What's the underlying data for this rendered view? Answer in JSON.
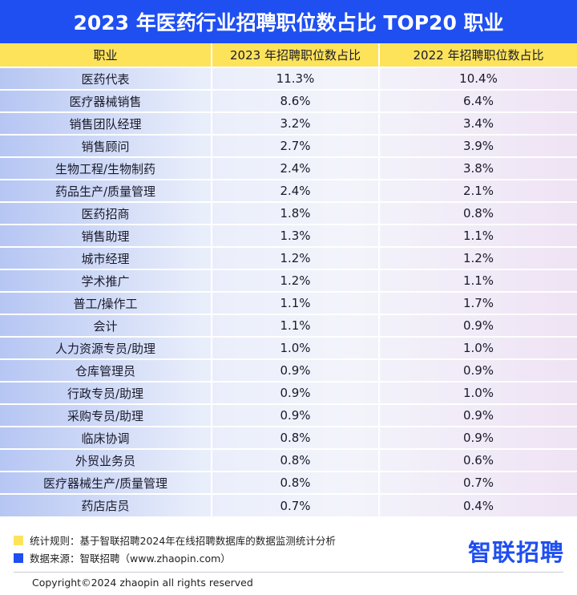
{
  "chart_data": {
    "type": "table",
    "title": "2023 年医药行业招聘职位数占比 TOP20 职业",
    "columns": [
      "职业",
      "2023 年招聘职位数占比",
      "2022 年招聘职位数占比"
    ],
    "rows": [
      [
        "医药代表",
        "11.3%",
        "10.4%"
      ],
      [
        "医疗器械销售",
        "8.6%",
        "6.4%"
      ],
      [
        "销售团队经理",
        "3.2%",
        "3.4%"
      ],
      [
        "销售顾问",
        "2.7%",
        "3.9%"
      ],
      [
        "生物工程/生物制药",
        "2.4%",
        "3.8%"
      ],
      [
        "药品生产/质量管理",
        "2.4%",
        "2.1%"
      ],
      [
        "医药招商",
        "1.8%",
        "0.8%"
      ],
      [
        "销售助理",
        "1.3%",
        "1.1%"
      ],
      [
        "城市经理",
        "1.2%",
        "1.2%"
      ],
      [
        "学术推广",
        "1.2%",
        "1.1%"
      ],
      [
        "普工/操作工",
        "1.1%",
        "1.7%"
      ],
      [
        "会计",
        "1.1%",
        "0.9%"
      ],
      [
        "人力资源专员/助理",
        "1.0%",
        "1.0%"
      ],
      [
        "仓库管理员",
        "0.9%",
        "0.9%"
      ],
      [
        "行政专员/助理",
        "0.9%",
        "1.0%"
      ],
      [
        "采购专员/助理",
        "0.9%",
        "0.9%"
      ],
      [
        "临床协调",
        "0.8%",
        "0.9%"
      ],
      [
        "外贸业务员",
        "0.8%",
        "0.6%"
      ],
      [
        "医疗器械生产/质量管理",
        "0.8%",
        "0.7%"
      ],
      [
        "药店店员",
        "0.7%",
        "0.4%"
      ]
    ]
  },
  "footer": {
    "note_rule": "统计规则：基于智联招聘2024年在线招聘数据库的数据监测统计分析",
    "note_source": "数据来源：智联招聘（www.zhaopin.com）",
    "logo_text": "智联招聘",
    "copyright": "Copyright©2024 zhaopin all rights reserved"
  },
  "colors": {
    "brand_blue": "#1f4ff0",
    "header_yellow": "#fde35a"
  }
}
